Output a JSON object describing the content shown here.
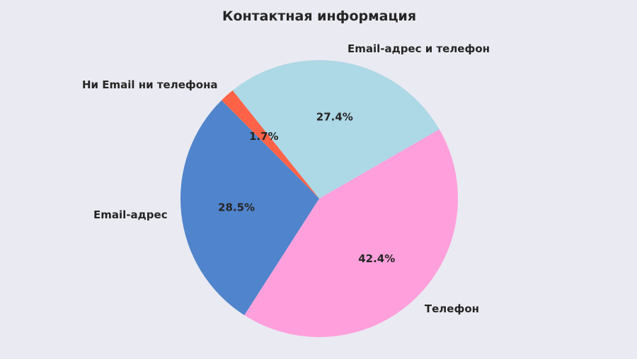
{
  "chart_data": {
    "type": "pie",
    "title": "Контактная информация",
    "start_angle_deg": 30,
    "direction": "counterclockwise",
    "slices": [
      {
        "label": "Email-адрес и телефон",
        "value": 27.4,
        "pct_label": "27.4%",
        "color": "#add8e6"
      },
      {
        "label": "Ни Email ни телефона",
        "value": 1.7,
        "pct_label": "1.7%",
        "color": "#ff6347"
      },
      {
        "label": "Email-адрес",
        "value": 28.5,
        "pct_label": "28.5%",
        "color": "#5084cc"
      },
      {
        "label": "Телефон",
        "value": 42.4,
        "pct_label": "42.4%",
        "color": "#ffa0dc"
      }
    ]
  }
}
